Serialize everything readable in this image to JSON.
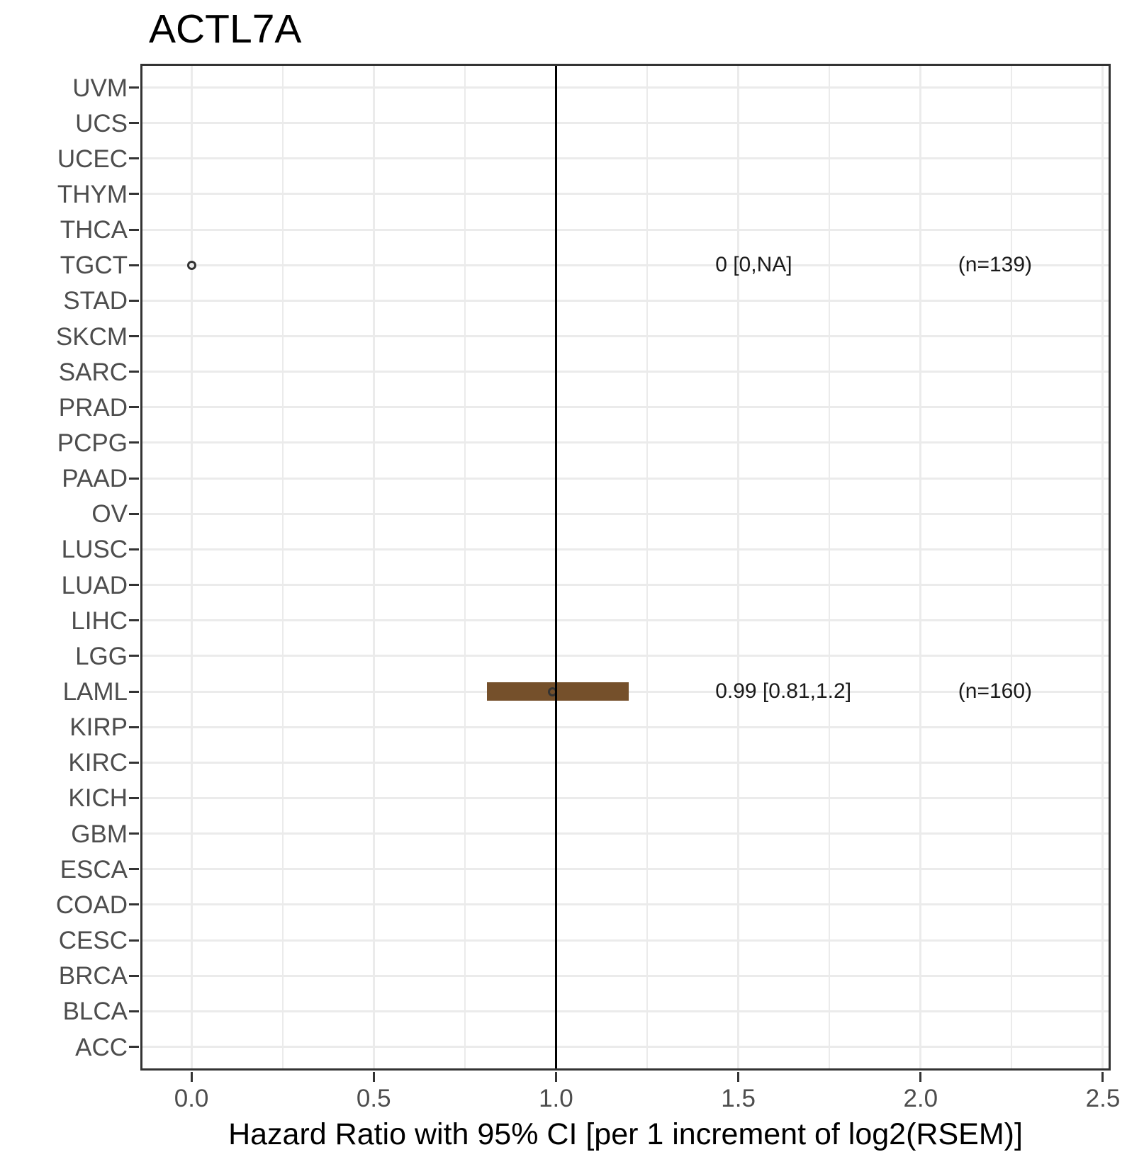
{
  "title": "ACTL7A",
  "x_axis_title": "Hazard Ratio with 95% CI [per 1 increment of log2(RSEM)]",
  "chart_data": {
    "type": "forest",
    "title": "ACTL7A",
    "xlabel": "Hazard Ratio with 95% CI [per 1 increment of log2(RSEM)]",
    "ylabel": "",
    "categories": [
      "UVM",
      "UCS",
      "UCEC",
      "THYM",
      "THCA",
      "TGCT",
      "STAD",
      "SKCM",
      "SARC",
      "PRAD",
      "PCPG",
      "PAAD",
      "OV",
      "LUSC",
      "LUAD",
      "LIHC",
      "LGG",
      "LAML",
      "KIRP",
      "KIRC",
      "KICH",
      "GBM",
      "ESCA",
      "COAD",
      "CESC",
      "BRCA",
      "BLCA",
      "ACC"
    ],
    "x_ticks": [
      0.0,
      0.5,
      1.0,
      1.5,
      2.0,
      2.5
    ],
    "x_tick_labels": [
      "0.0",
      "0.5",
      "1.0",
      "1.5",
      "2.0",
      "2.5"
    ],
    "x_minor_ticks": [
      0.25,
      0.75,
      1.25,
      1.75,
      2.25
    ],
    "xlim": [
      -0.1401,
      2.5214
    ],
    "reference_line_x": 1.0,
    "grid": true,
    "legend": "none",
    "estimates": [
      {
        "category": "TGCT",
        "hazard_ratio": 0,
        "ci_low": 0,
        "ci_high": "NA",
        "n": 139,
        "hr_label": "0 [0,NA]",
        "n_label": "(n=139)",
        "point_x": 0,
        "show_bar": false
      },
      {
        "category": "LAML",
        "hazard_ratio": 0.99,
        "ci_low": 0.81,
        "ci_high": 1.2,
        "n": 160,
        "hr_label": "0.99 [0.81,1.2]",
        "n_label": "(n=160)",
        "point_x": 0.99,
        "show_bar": true
      }
    ],
    "annotation_x": {
      "hr_label": 1.437,
      "n_label": 2.103
    },
    "colors": {
      "bar": "#75502B",
      "gridline": "#EBEBEB",
      "axis_text": "#4D4D4D",
      "panel_border": "#333333",
      "reference_line": "#000000",
      "annotation_text": "#1A1A1A",
      "title_text": "#000000"
    }
  }
}
